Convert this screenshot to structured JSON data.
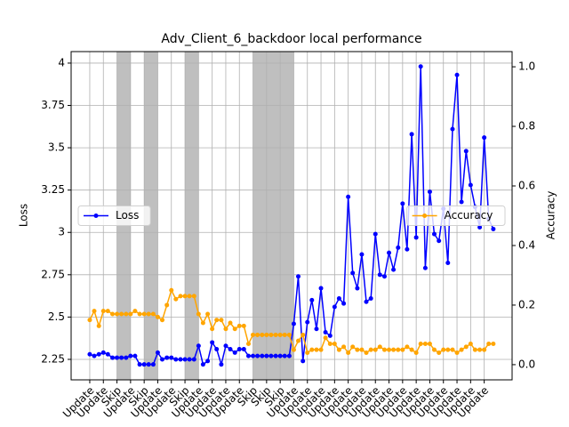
{
  "chart_data": {
    "type": "line",
    "title": "Adv_Client_6_backdoor local performance",
    "ylabel": "Loss",
    "y2label": "Accuracy",
    "x": [
      0,
      0.33,
      0.67,
      1,
      1.33,
      1.67,
      2,
      2.33,
      2.67,
      3,
      3.33,
      3.67,
      4,
      4.33,
      4.67,
      5,
      5.33,
      5.67,
      6,
      6.33,
      6.67,
      7,
      7.33,
      7.67,
      8,
      8.33,
      8.67,
      9,
      9.33,
      9.67,
      10,
      10.33,
      10.67,
      11,
      11.33,
      11.67,
      12,
      12.33,
      12.67,
      13,
      13.33,
      13.67,
      14,
      14.33,
      14.67,
      15,
      15.33,
      15.67,
      16,
      16.33,
      16.67,
      17,
      17.33,
      17.67,
      18,
      18.33,
      18.67,
      19,
      19.33,
      19.67,
      20,
      20.33,
      20.67,
      21,
      21.33,
      21.67,
      22,
      22.33,
      22.67,
      23,
      23.33,
      23.67,
      24,
      24.33,
      24.67,
      25,
      25.33,
      25.67,
      26,
      26.33,
      26.67,
      27,
      27.33,
      27.67,
      28,
      28.33,
      28.67,
      29,
      29.33,
      29.67
    ],
    "series": [
      {
        "name": "Loss",
        "color": "#0000ff",
        "axis": "y",
        "values": [
          2.28,
          2.27,
          2.28,
          2.29,
          2.28,
          2.26,
          2.26,
          2.26,
          2.26,
          2.27,
          2.27,
          2.22,
          2.22,
          2.22,
          2.22,
          2.29,
          2.25,
          2.26,
          2.26,
          2.25,
          2.25,
          2.25,
          2.25,
          2.25,
          2.33,
          2.22,
          2.24,
          2.35,
          2.31,
          2.22,
          2.33,
          2.31,
          2.29,
          2.31,
          2.31,
          2.27,
          2.27,
          2.27,
          2.27,
          2.27,
          2.27,
          2.27,
          2.27,
          2.27,
          2.27,
          2.46,
          2.74,
          2.24,
          2.47,
          2.6,
          2.43,
          2.67,
          2.41,
          2.39,
          2.56,
          2.61,
          2.58,
          3.21,
          2.76,
          2.67,
          2.87,
          2.59,
          2.61,
          2.99,
          2.75,
          2.74,
          2.88,
          2.78,
          2.91,
          3.17,
          2.9,
          3.58,
          2.97,
          3.98,
          2.79,
          3.24,
          2.99,
          2.95,
          3.14,
          2.82,
          3.61,
          3.93,
          3.18,
          3.48,
          3.28,
          3.15,
          3.03,
          3.56,
          3.08,
          3.02
        ]
      },
      {
        "name": "Accuracy",
        "color": "#ffa500",
        "axis": "y2",
        "values": [
          0.15,
          0.18,
          0.13,
          0.18,
          0.18,
          0.17,
          0.17,
          0.17,
          0.17,
          0.17,
          0.18,
          0.17,
          0.17,
          0.17,
          0.17,
          0.16,
          0.15,
          0.2,
          0.25,
          0.22,
          0.23,
          0.23,
          0.23,
          0.23,
          0.17,
          0.14,
          0.17,
          0.12,
          0.15,
          0.15,
          0.12,
          0.14,
          0.12,
          0.13,
          0.13,
          0.07,
          0.1,
          0.1,
          0.1,
          0.1,
          0.1,
          0.1,
          0.1,
          0.1,
          0.1,
          0.05,
          0.08,
          0.1,
          0.04,
          0.05,
          0.05,
          0.05,
          0.09,
          0.07,
          0.07,
          0.05,
          0.06,
          0.04,
          0.06,
          0.05,
          0.05,
          0.04,
          0.05,
          0.05,
          0.06,
          0.05,
          0.05,
          0.05,
          0.05,
          0.05,
          0.06,
          0.05,
          0.04,
          0.07,
          0.07,
          0.07,
          0.05,
          0.04,
          0.05,
          0.05,
          0.05,
          0.04,
          0.05,
          0.06,
          0.07,
          0.05,
          0.05,
          0.05,
          0.07,
          0.07
        ]
      }
    ],
    "shaded_spans": [
      [
        2,
        3
      ],
      [
        4,
        5
      ],
      [
        7,
        8
      ],
      [
        12,
        13
      ],
      [
        13,
        14
      ],
      [
        14,
        15
      ]
    ],
    "shade_color": "#808080",
    "xlim": [
      -1.37,
      31.05
    ],
    "xticks": [
      {
        "value": 0,
        "label": "Update"
      },
      {
        "value": 1,
        "label": "Update"
      },
      {
        "value": 2,
        "label": "Skip"
      },
      {
        "value": 3,
        "label": "Update"
      },
      {
        "value": 4,
        "label": "Skip"
      },
      {
        "value": 5,
        "label": "Update"
      },
      {
        "value": 6,
        "label": "Update"
      },
      {
        "value": 7,
        "label": "Skip"
      },
      {
        "value": 8,
        "label": "Update"
      },
      {
        "value": 9,
        "label": "Update"
      },
      {
        "value": 10,
        "label": "Update"
      },
      {
        "value": 11,
        "label": "Update"
      },
      {
        "value": 12,
        "label": "Skip"
      },
      {
        "value": 13,
        "label": "Skip"
      },
      {
        "value": 14,
        "label": "Skip"
      },
      {
        "value": 15,
        "label": "Update"
      },
      {
        "value": 16,
        "label": "Update"
      },
      {
        "value": 17,
        "label": "Update"
      },
      {
        "value": 18,
        "label": "Update"
      },
      {
        "value": 19,
        "label": "Update"
      },
      {
        "value": 20,
        "label": "Update"
      },
      {
        "value": 21,
        "label": "Update"
      },
      {
        "value": 22,
        "label": "Update"
      },
      {
        "value": 23,
        "label": "Update"
      },
      {
        "value": 24,
        "label": "Update"
      },
      {
        "value": 25,
        "label": "Update"
      },
      {
        "value": 26,
        "label": "Update"
      },
      {
        "value": 27,
        "label": "Update"
      },
      {
        "value": 28,
        "label": "Update"
      },
      {
        "value": 29,
        "label": "Update"
      }
    ],
    "ylim": [
      2.129,
      4.068
    ],
    "yticks": [
      2.25,
      2.5,
      2.75,
      3,
      3.25,
      3.5,
      3.75,
      4
    ],
    "y2lim": [
      -0.051,
      1.051
    ],
    "y2ticks": [
      {
        "value": 0,
        "label": "0.0"
      },
      {
        "value": 0.2,
        "label": "0.2"
      },
      {
        "value": 0.4,
        "label": "0.4"
      },
      {
        "value": 0.6,
        "label": "0.6"
      },
      {
        "value": 0.8,
        "label": "0.8"
      },
      {
        "value": 1,
        "label": "1.0"
      }
    ],
    "grid": true,
    "legend": [
      "center left",
      "center right"
    ]
  }
}
